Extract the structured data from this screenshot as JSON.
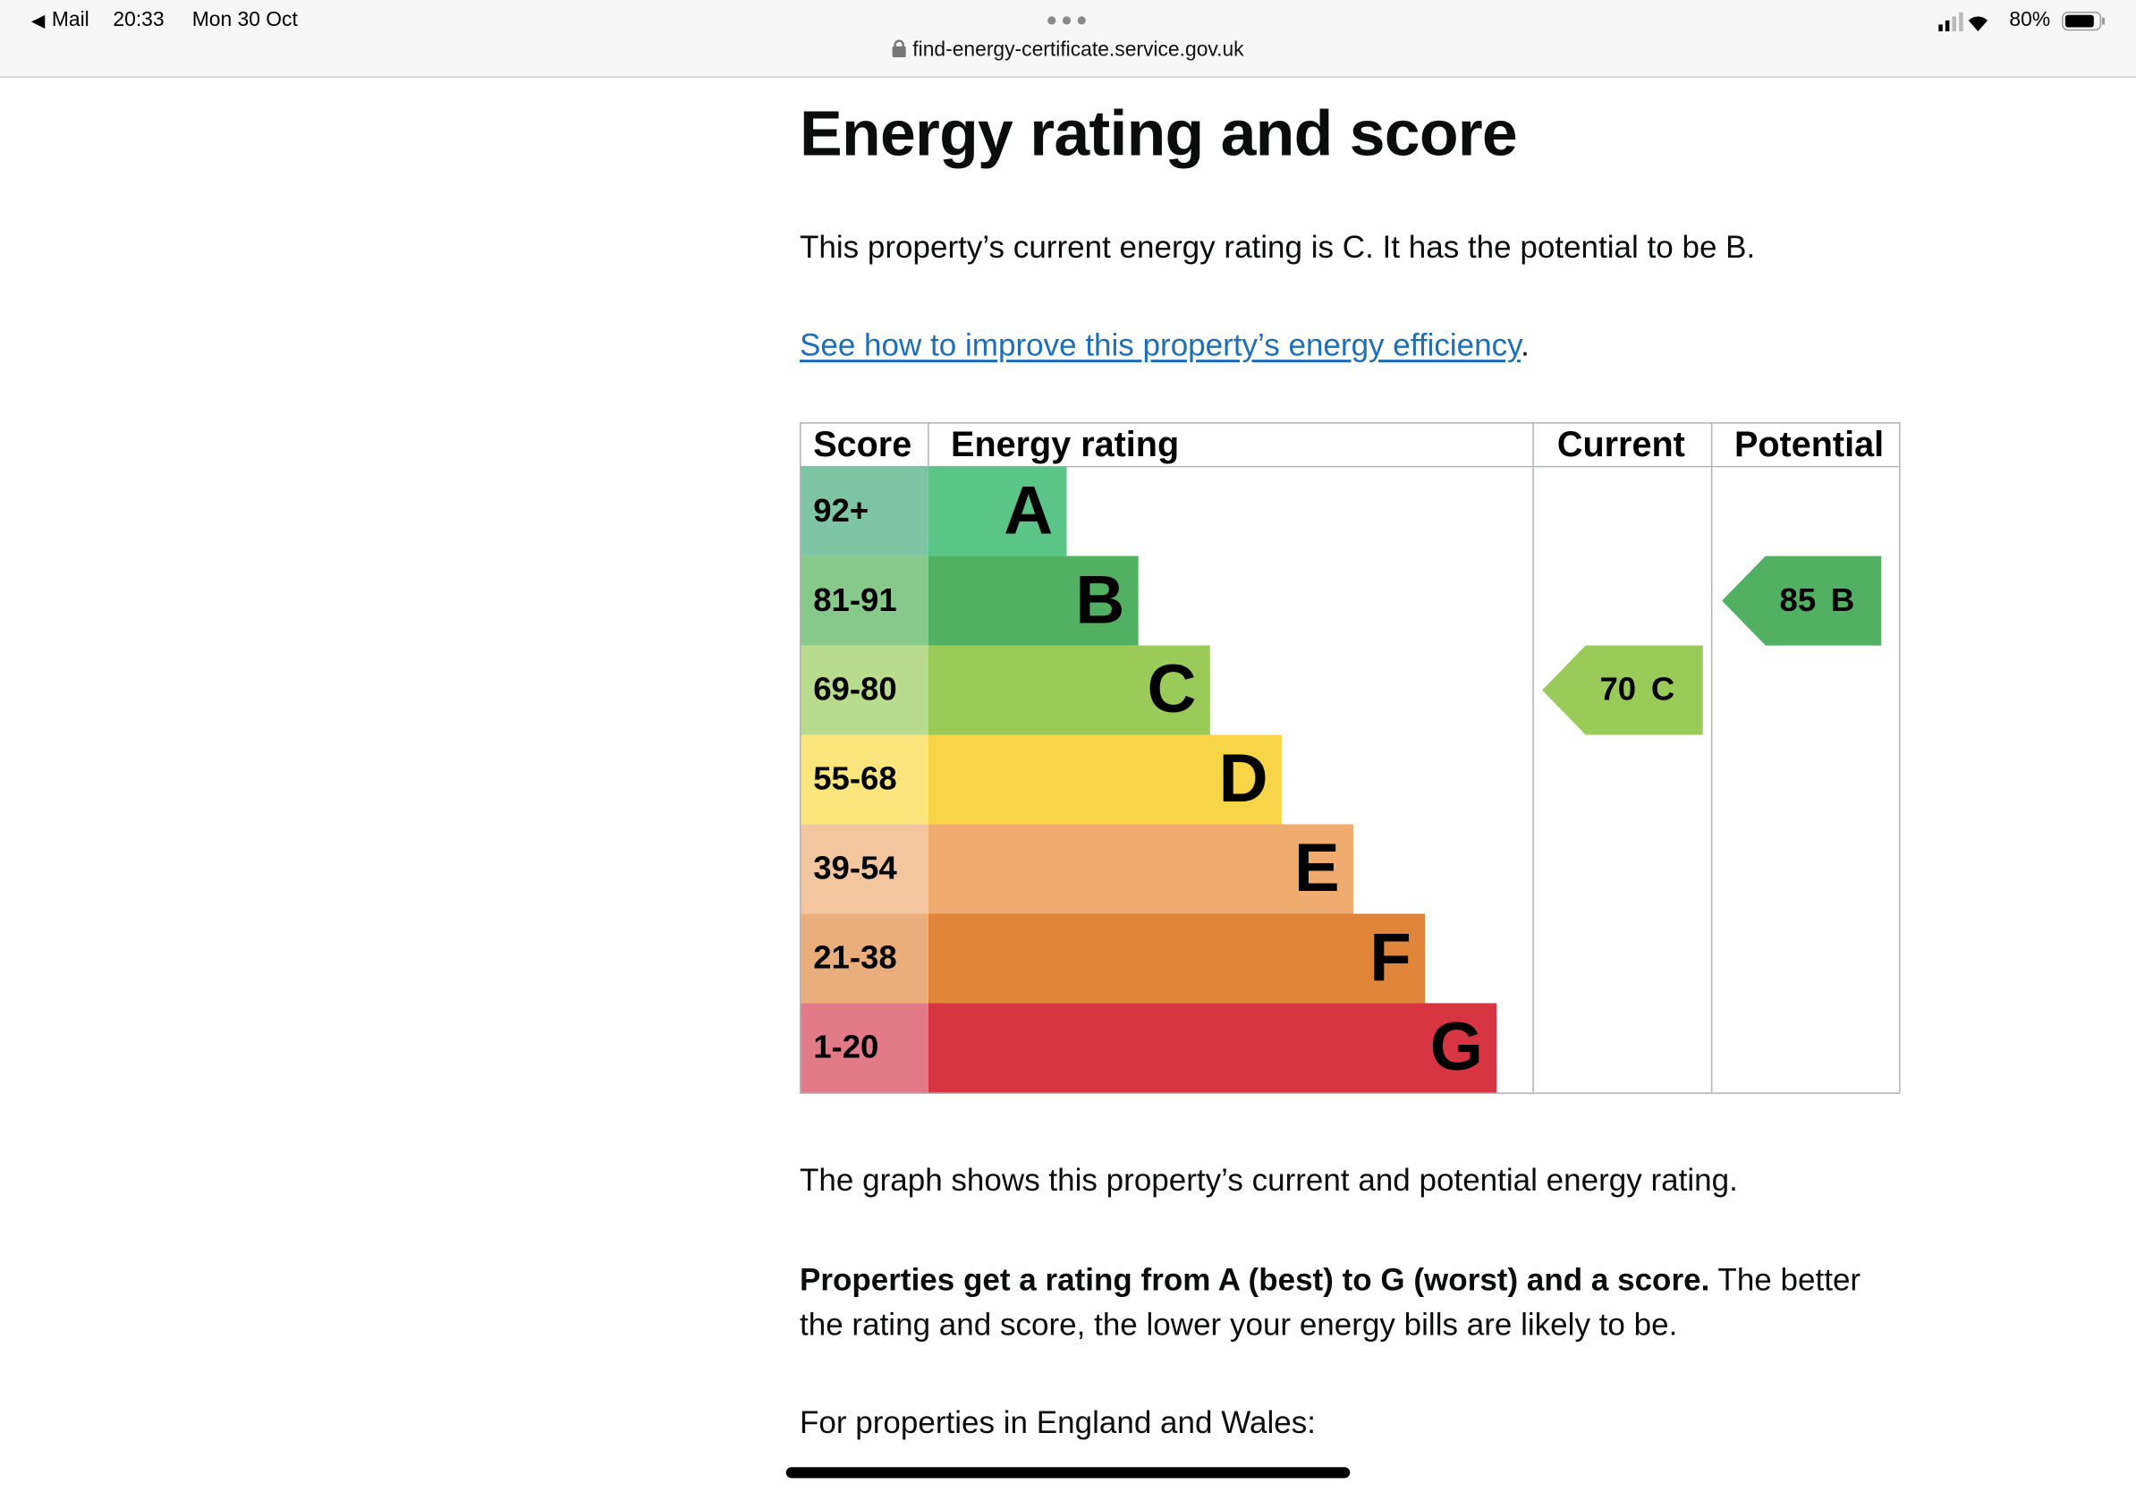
{
  "status_bar": {
    "back": "Mail",
    "time": "20:33",
    "date": "Mon 30 Oct",
    "battery": "80%"
  },
  "address_bar": {
    "url": "find-energy-certificate.service.gov.uk"
  },
  "heading": "Energy rating and score",
  "intro": "This property’s current energy rating is C. It has the potential to be B.",
  "link": {
    "text": "See how to improve this property’s energy efficiency",
    "after": "."
  },
  "rating_chart": {
    "headers": [
      "Score",
      "Energy rating",
      "Current",
      "Potential"
    ],
    "bands": [
      {
        "score": "92+",
        "letter": "A",
        "score_color": "#7dc5a5",
        "bar_color": "#5bc587"
      },
      {
        "score": "81-91",
        "letter": "B",
        "score_color": "#87c98b",
        "bar_color": "#51b062"
      },
      {
        "score": "69-80",
        "letter": "C",
        "score_color": "#b8db8e",
        "bar_color": "#9acb58"
      },
      {
        "score": "55-68",
        "letter": "D",
        "score_color": "#fbe57d",
        "bar_color": "#f8d546"
      },
      {
        "score": "39-54",
        "letter": "E",
        "score_color": "#f4c6a0",
        "bar_color": "#efac6e"
      },
      {
        "score": "21-38",
        "letter": "F",
        "score_color": "#e9ae7c",
        "bar_color": "#e0853a"
      },
      {
        "score": "1-20",
        "letter": "G",
        "score_color": "#e37a87",
        "bar_color": "#d83543"
      }
    ],
    "current": {
      "score": "70",
      "letter": "C"
    },
    "potential": {
      "score": "85",
      "letter": "B"
    }
  },
  "graph_note": "The graph shows this property’s current and potential energy rating.",
  "rating_explanation": {
    "bold": "Properties get a rating from A (best) to G (worst) and a score.",
    "text": "The better the rating and score, the lower your energy bills are likely to be."
  },
  "region_note": "For properties in England and Wales:"
}
